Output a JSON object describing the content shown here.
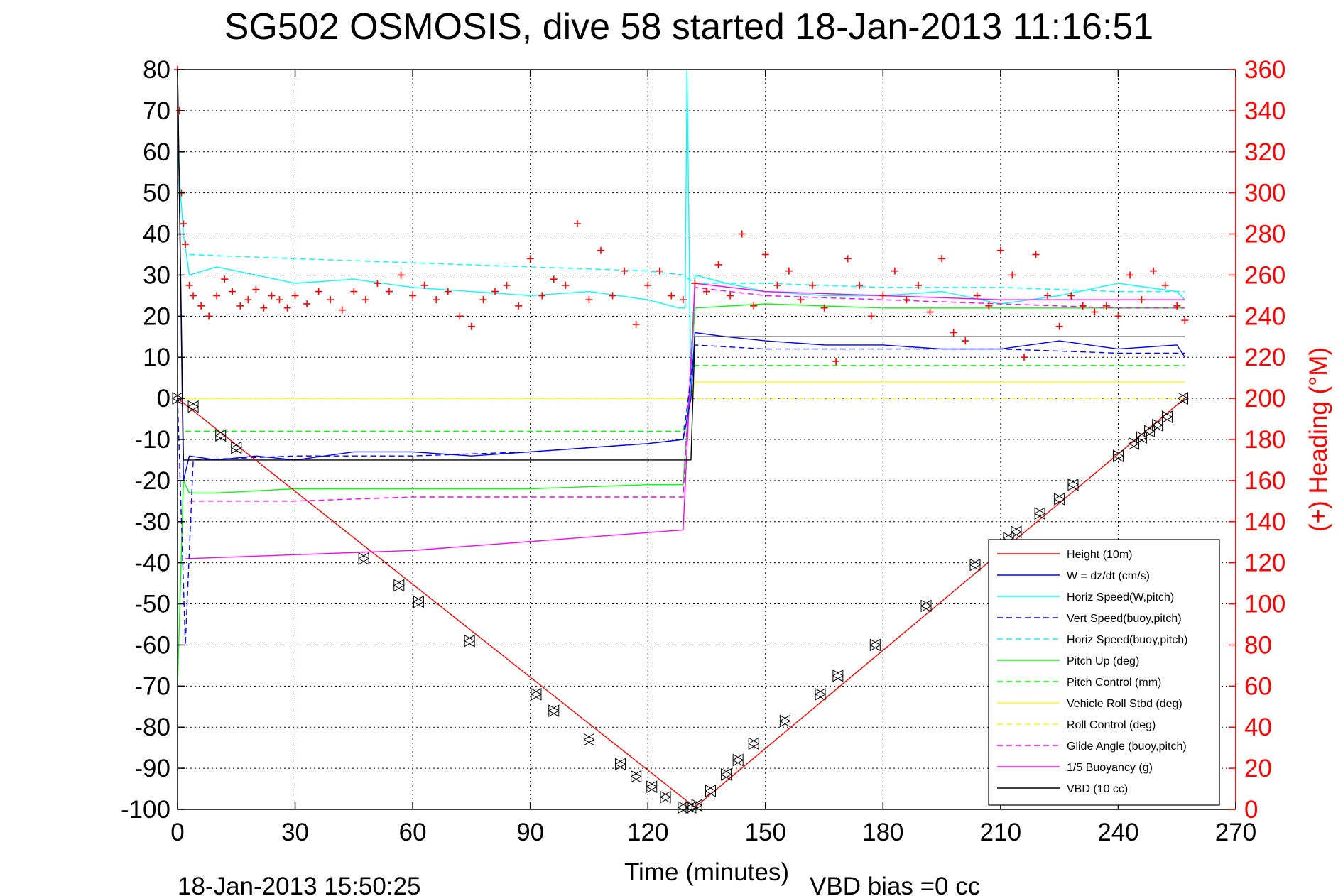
{
  "chart_data": {
    "type": "line",
    "title": "SG502 OSMOSIS, dive 58 started 18-Jan-2013 11:16:51",
    "xlabel": "Time (minutes)",
    "ylabel": "",
    "ylabel_right": "(+) Heading (°M)",
    "xlim": [
      0,
      270
    ],
    "ylim": [
      -100,
      80
    ],
    "ylim_right": [
      0,
      360
    ],
    "xticks": [
      "0",
      "30",
      "60",
      "90",
      "120",
      "150",
      "180",
      "210",
      "240",
      "270"
    ],
    "yticks": [
      "80",
      "70",
      "60",
      "50",
      "40",
      "30",
      "20",
      "10",
      "0",
      "-10",
      "-20",
      "-30",
      "-40",
      "-50",
      "-60",
      "-70",
      "-80",
      "-90",
      "-100"
    ],
    "yticks_right": [
      "360",
      "340",
      "320",
      "300",
      "280",
      "260",
      "240",
      "220",
      "200",
      "180",
      "160",
      "140",
      "120",
      "100",
      "80",
      "60",
      "40",
      "20",
      "0"
    ],
    "grid": true,
    "legend_position": "bottom-right",
    "footer_left": "18-Jan-2013 15:50:25",
    "footer_right": "VBD bias =0 cc",
    "series": [
      {
        "name": "Height (10m)",
        "color": "#ff0000",
        "dash": false,
        "x": [
          0,
          132,
          257
        ],
        "y": [
          0,
          -99.5,
          0
        ]
      },
      {
        "name": "W = dz/dt (cm/s)",
        "color": "#0000ff",
        "dash": false,
        "x": [
          0,
          1.5,
          3,
          10,
          20,
          30,
          45,
          60,
          75,
          90,
          105,
          120,
          129,
          131,
          132,
          140,
          150,
          165,
          180,
          195,
          210,
          225,
          240,
          255,
          257
        ],
        "y": [
          80,
          -20,
          -14,
          -15,
          -14,
          -15,
          -13,
          -13,
          -14,
          -13,
          -12,
          -11,
          -10,
          0,
          16,
          15,
          14,
          13,
          13,
          12,
          12,
          14,
          12,
          13,
          10
        ]
      },
      {
        "name": "Horiz Speed(W,pitch)",
        "color": "#00ffff",
        "dash": false,
        "x": [
          0,
          1.5,
          3,
          10,
          20,
          30,
          45,
          60,
          75,
          90,
          105,
          120,
          128,
          129.5,
          130,
          131,
          132,
          140,
          150,
          165,
          180,
          195,
          210,
          225,
          240,
          255,
          257
        ],
        "y": [
          60,
          40,
          30,
          32,
          30,
          28,
          29,
          27,
          26,
          25,
          26,
          24,
          22,
          22,
          80,
          0,
          30,
          28,
          26,
          25,
          25,
          26,
          23,
          25,
          28,
          26,
          24
        ]
      },
      {
        "name": "Vert Speed(buoy,pitch)",
        "color": "#0000ff",
        "dash": true,
        "x": [
          0,
          2,
          4,
          30,
          60,
          90,
          120,
          129,
          132,
          150,
          180,
          210,
          240,
          257
        ],
        "y": [
          0,
          -60,
          -15,
          -14,
          -14,
          -13,
          -11,
          -10,
          13,
          12,
          12,
          12,
          11,
          11
        ]
      },
      {
        "name": "Horiz Speed(buoy,pitch)",
        "color": "#00ffff",
        "dash": true,
        "x": [
          3,
          30,
          60,
          90,
          120,
          129,
          132,
          150,
          180,
          210,
          240,
          257
        ],
        "y": [
          35,
          34,
          33,
          32,
          31,
          30,
          28,
          28,
          27,
          27,
          26,
          26
        ]
      },
      {
        "name": "Pitch Up (deg)",
        "color": "#00ff00",
        "dash": false,
        "x": [
          0,
          1.5,
          3,
          10,
          30,
          60,
          90,
          120,
          129,
          132,
          150,
          180,
          210,
          240,
          257
        ],
        "y": [
          -70,
          -20,
          -23,
          -23,
          -22,
          -22,
          -22,
          -21,
          -21,
          22,
          23,
          22,
          22,
          22,
          22
        ]
      },
      {
        "name": "Pitch Control (mm)",
        "color": "#00ff00",
        "dash": true,
        "x": [
          2,
          30,
          60,
          90,
          129,
          132,
          150,
          180,
          210,
          240,
          257
        ],
        "y": [
          -8,
          -8,
          -8,
          -8,
          -8,
          8,
          8,
          8,
          8,
          8,
          8
        ]
      },
      {
        "name": "Vehicle Roll Stbd (deg)",
        "color": "#ffff00",
        "dash": false,
        "x": [
          0,
          5,
          30,
          60,
          90,
          120,
          131,
          132,
          150,
          180,
          210,
          240,
          257
        ],
        "y": [
          0,
          0,
          0,
          0,
          0,
          0,
          0,
          4,
          4,
          4,
          4,
          4,
          4
        ]
      },
      {
        "name": "Roll Control (deg)",
        "color": "#ffff00",
        "dash": true,
        "x": [
          3,
          30,
          60,
          90,
          120,
          129,
          132,
          150,
          180,
          210,
          240,
          257
        ],
        "y": [
          0,
          0,
          0,
          0,
          0,
          0,
          0,
          0,
          0,
          0,
          0,
          0
        ]
      },
      {
        "name": "Glide Angle (buoy,pitch)",
        "color": "#ff00ff",
        "dash": true,
        "x": [
          3,
          30,
          60,
          90,
          120,
          129,
          132,
          150,
          180,
          210,
          240,
          257
        ],
        "y": [
          -25,
          -25,
          -24,
          -24,
          -24,
          -24,
          27,
          25,
          24,
          23,
          22,
          22
        ]
      },
      {
        "name": "1/5 Buoyancy (g)",
        "color": "#ff00ff",
        "dash": false,
        "x": [
          2,
          60,
          129,
          132,
          150,
          180,
          210,
          240,
          257
        ],
        "y": [
          -39,
          -37,
          -32,
          28,
          26,
          25,
          24,
          24,
          24
        ]
      },
      {
        "name": "VBD (10 cc)",
        "color": "#000000",
        "dash": false,
        "x": [
          0,
          1.5,
          3,
          129,
          131,
          132,
          257
        ],
        "y": [
          80,
          -15,
          -15,
          -15,
          -15,
          15,
          15
        ]
      }
    ],
    "heading_series": {
      "name": "(+) Heading (°M)",
      "color": "#ff0000",
      "marker": "+",
      "x": [
        0,
        0.5,
        1,
        1.5,
        2,
        3,
        4,
        6,
        8,
        10,
        12,
        14,
        16,
        18,
        20,
        22,
        24,
        26,
        28,
        30,
        33,
        36,
        39,
        42,
        45,
        48,
        51,
        54,
        57,
        60,
        63,
        66,
        69,
        72,
        75,
        78,
        81,
        84,
        87,
        90,
        93,
        96,
        99,
        102,
        105,
        108,
        111,
        114,
        117,
        120,
        123,
        126,
        129,
        132,
        135,
        138,
        141,
        144,
        147,
        150,
        153,
        156,
        159,
        162,
        165,
        168,
        171,
        174,
        177,
        180,
        183,
        186,
        189,
        192,
        195,
        198,
        201,
        204,
        207,
        210,
        213,
        216,
        219,
        222,
        225,
        228,
        231,
        234,
        237,
        240,
        243,
        246,
        249,
        252,
        255,
        257
      ],
      "y": [
        360,
        340,
        300,
        285,
        275,
        255,
        250,
        245,
        240,
        250,
        258,
        252,
        245,
        248,
        253,
        244,
        250,
        248,
        244,
        250,
        246,
        252,
        248,
        243,
        252,
        248,
        256,
        252,
        260,
        250,
        255,
        248,
        252,
        240,
        235,
        248,
        252,
        255,
        245,
        268,
        250,
        258,
        255,
        285,
        248,
        272,
        250,
        262,
        236,
        255,
        262,
        250,
        248,
        256,
        252,
        265,
        250,
        280,
        245,
        270,
        255,
        262,
        248,
        255,
        244,
        218,
        268,
        255,
        240,
        250,
        262,
        248,
        255,
        242,
        268,
        232,
        228,
        250,
        245,
        272,
        260,
        220,
        270,
        250,
        235,
        250,
        245,
        242,
        245,
        240,
        260,
        248,
        262,
        255,
        245,
        238
      ]
    },
    "dive_markers": {
      "x": [
        0,
        4,
        11,
        15,
        47.5,
        56.5,
        61.5,
        74.5,
        91.5,
        96,
        105,
        113,
        117,
        121,
        124.5,
        129,
        131,
        132.5,
        136,
        140,
        143,
        147,
        155,
        164,
        168.5,
        178,
        191,
        203.5,
        212,
        214,
        220,
        225,
        228.5,
        240,
        244,
        246,
        248,
        250,
        252.5,
        256.5
      ],
      "y": [
        0,
        -2,
        -9,
        -12,
        -39,
        -45.5,
        -49.5,
        -59,
        -72,
        -76,
        -83,
        -89,
        -92,
        -94.5,
        -97,
        -99.5,
        -99.5,
        -99,
        -95.5,
        -91.5,
        -88,
        -84,
        -78.5,
        -72,
        -67.5,
        -60,
        -50.5,
        -40.5,
        -34,
        -32.5,
        -28,
        -24.5,
        -21,
        -14,
        -11,
        -9.5,
        -8,
        -6.5,
        -4.5,
        0
      ]
    }
  }
}
